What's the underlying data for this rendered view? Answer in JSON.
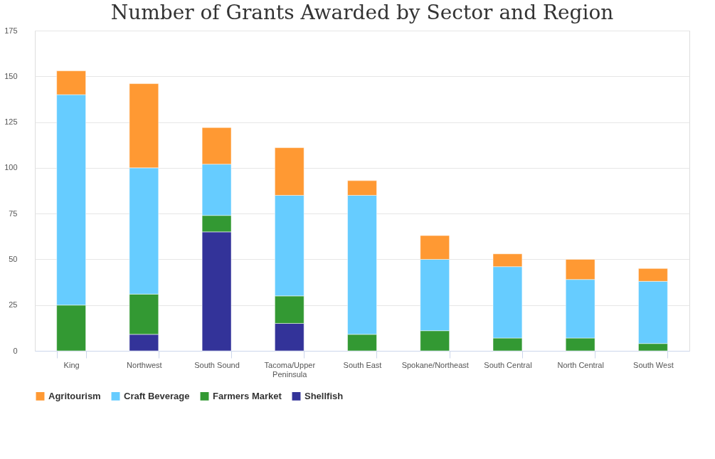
{
  "chart_data": {
    "type": "bar",
    "title": "Number of Grants Awarded by Sector and Region",
    "stacked": true,
    "categories": [
      "King",
      "Northwest",
      "South Sound",
      "Tacoma/Upper Peninsula",
      "South East",
      "Spokane/Northeast",
      "South Central",
      "North Central",
      "South West"
    ],
    "series": [
      {
        "name": "Shellfish",
        "color": "#333399",
        "values": [
          null,
          9,
          65,
          15,
          null,
          null,
          null,
          null,
          null
        ]
      },
      {
        "name": "Farmers Market",
        "color": "#339933",
        "values": [
          25,
          22,
          9,
          15,
          9,
          11,
          7,
          7,
          4
        ]
      },
      {
        "name": "Craft Beverage",
        "color": "#66ccff",
        "values": [
          115,
          69,
          28,
          55,
          76,
          39,
          39,
          32,
          34
        ]
      },
      {
        "name": "Agritourism",
        "color": "#ff9933",
        "values": [
          13,
          46,
          20,
          26,
          8,
          13,
          7,
          11,
          7
        ]
      }
    ],
    "ylim": [
      0,
      175
    ],
    "yticks": [
      0,
      25,
      50,
      75,
      100,
      125,
      150,
      175
    ],
    "grid": "y",
    "legend": "bottom"
  }
}
